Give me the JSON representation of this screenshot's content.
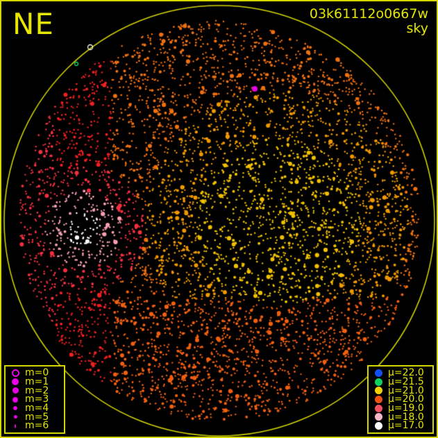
{
  "direction_label": "NE",
  "image_id": "03k61112o0667w",
  "mode_label": "sky",
  "colors": {
    "frame": "#d6d600",
    "text": "#e6e600",
    "magnitude_marker": "#e600e6"
  },
  "magnitude_legend": [
    {
      "label": "m=0",
      "style": "ring"
    },
    {
      "label": "m=1"
    },
    {
      "label": "m=2"
    },
    {
      "label": "m=3"
    },
    {
      "label": "m=4"
    },
    {
      "label": "m=5"
    },
    {
      "label": "m=6"
    }
  ],
  "sky_brightness_legend": [
    {
      "label": "μ=22.0",
      "color": "#1050f0"
    },
    {
      "label": "μ=21.5",
      "color": "#10d060"
    },
    {
      "label": "μ=21.0",
      "color": "#f0d000"
    },
    {
      "label": "μ=20.0",
      "color": "#f05010"
    },
    {
      "label": "μ=19.0",
      "color": "#f05060"
    },
    {
      "label": "μ=18.0",
      "color": "#f8b8c8"
    },
    {
      "label": "μ=17.0",
      "color": "#ffffff"
    }
  ]
}
